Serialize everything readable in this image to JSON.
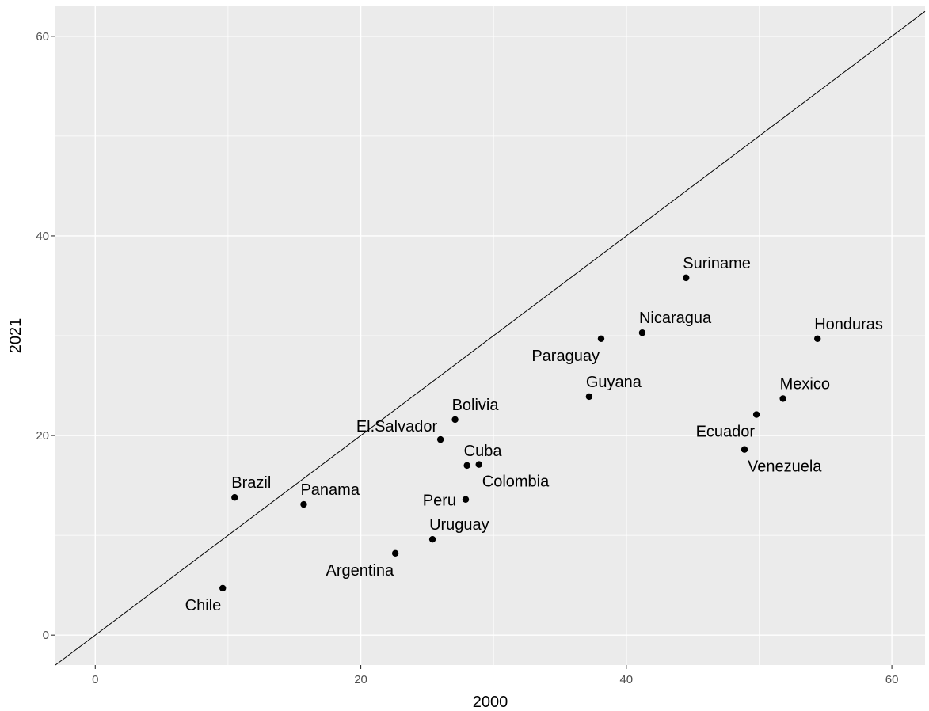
{
  "chart_data": {
    "type": "scatter",
    "title": "",
    "xlabel": "2000",
    "ylabel": "2021",
    "xlim": [
      -3,
      62.5
    ],
    "ylim": [
      -3,
      63
    ],
    "xticks": [
      0,
      20,
      40,
      60
    ],
    "yticks": [
      0,
      20,
      40,
      60
    ],
    "grid": true,
    "reference_line": {
      "slope": 1,
      "intercept": 0
    },
    "points": [
      {
        "label": "Chile",
        "x": 9.6,
        "y": 4.7,
        "anchor": "below-left"
      },
      {
        "label": "Brazil",
        "x": 10.5,
        "y": 13.8,
        "anchor": "above-right"
      },
      {
        "label": "Panama",
        "x": 15.7,
        "y": 13.1,
        "anchor": "above-right"
      },
      {
        "label": "Argentina",
        "x": 22.6,
        "y": 8.2,
        "anchor": "below-left"
      },
      {
        "label": "Uruguay",
        "x": 25.4,
        "y": 9.6,
        "anchor": "above-right"
      },
      {
        "label": "El.Salvador",
        "x": 26.0,
        "y": 19.6,
        "anchor": "above-left"
      },
      {
        "label": "Bolivia",
        "x": 27.1,
        "y": 21.6,
        "anchor": "above-right"
      },
      {
        "label": "Peru",
        "x": 27.9,
        "y": 13.6,
        "anchor": "left"
      },
      {
        "label": "Cuba",
        "x": 28.0,
        "y": 17.0,
        "anchor": "above-right"
      },
      {
        "label": "Colombia",
        "x": 28.9,
        "y": 17.1,
        "anchor": "below-right"
      },
      {
        "label": "Guyana",
        "x": 37.2,
        "y": 23.9,
        "anchor": "above-right"
      },
      {
        "label": "Paraguay",
        "x": 38.1,
        "y": 29.7,
        "anchor": "below-left"
      },
      {
        "label": "Nicaragua",
        "x": 41.2,
        "y": 30.3,
        "anchor": "above-right"
      },
      {
        "label": "Suriname",
        "x": 44.5,
        "y": 35.8,
        "anchor": "above-right"
      },
      {
        "label": "Venezuela",
        "x": 48.9,
        "y": 18.6,
        "anchor": "below-right"
      },
      {
        "label": "Ecuador",
        "x": 49.8,
        "y": 22.1,
        "anchor": "below-left"
      },
      {
        "label": "Mexico",
        "x": 51.8,
        "y": 23.7,
        "anchor": "above-right"
      },
      {
        "label": "Honduras",
        "x": 54.4,
        "y": 29.7,
        "anchor": "above-right"
      }
    ]
  }
}
